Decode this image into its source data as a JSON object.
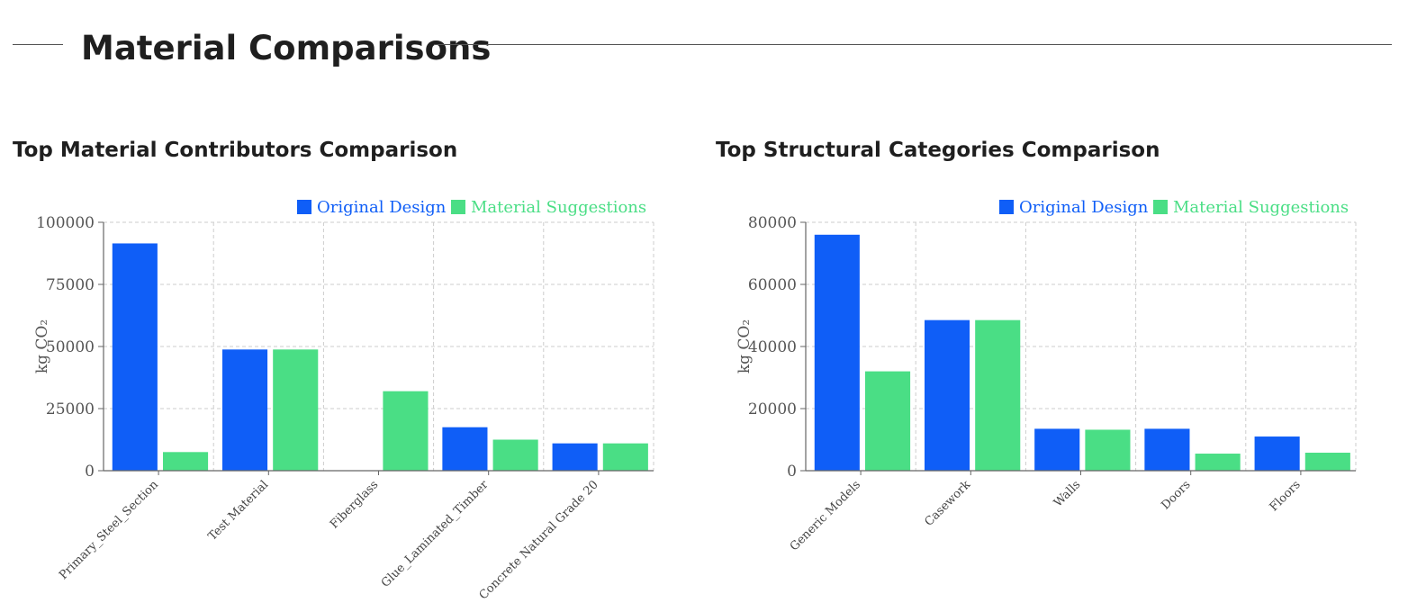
{
  "page": {
    "section_title": "Material Comparisons"
  },
  "colors": {
    "original": "#0f5ef7",
    "suggestions": "#4ade85",
    "grid": "#cccccc",
    "axis": "#666666"
  },
  "chart_data": [
    {
      "type": "bar",
      "title": "Top Material Contributors Comparison",
      "ylabel": "kg CO₂",
      "xlabel": "",
      "ylim": [
        0,
        100000
      ],
      "yticks": [
        0,
        25000,
        50000,
        75000,
        100000
      ],
      "grid": true,
      "legend_position": "top-right",
      "categories": [
        "Primary_Steel_Section",
        "Test Material",
        "Fiberglass",
        "Glue_Laminated_Timber",
        "Concrete Natural Grade 20"
      ],
      "series": [
        {
          "name": "Original Design",
          "values": [
            91500,
            48800,
            0,
            17500,
            11000
          ]
        },
        {
          "name": "Material Suggestions",
          "values": [
            7500,
            48800,
            32000,
            12500,
            11000
          ]
        }
      ]
    },
    {
      "type": "bar",
      "title": "Top Structural Categories Comparison",
      "ylabel": "kg CO₂",
      "xlabel": "",
      "ylim": [
        0,
        80000
      ],
      "yticks": [
        0,
        20000,
        40000,
        60000,
        80000
      ],
      "grid": true,
      "legend_position": "top-right",
      "categories": [
        "Generic Models",
        "Casework",
        "Walls",
        "Doors",
        "Floors"
      ],
      "series": [
        {
          "name": "Original Design",
          "values": [
            76000,
            48500,
            13500,
            13500,
            11000
          ]
        },
        {
          "name": "Material Suggestions",
          "values": [
            32000,
            48500,
            13200,
            5500,
            5800
          ]
        }
      ]
    }
  ]
}
